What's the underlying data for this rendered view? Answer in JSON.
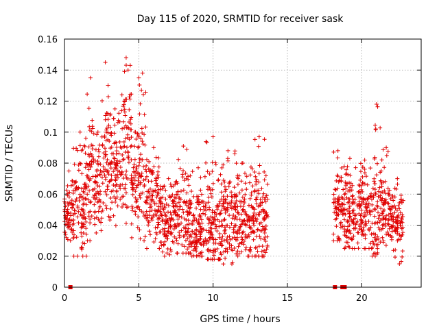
{
  "chart_data": {
    "type": "scatter",
    "title": "Day 115 of 2020, SRMTID for receiver sask",
    "xlabel": "GPS time / hours",
    "ylabel": "SRMTID / TECUs",
    "xlim": [
      0,
      24
    ],
    "ylim": [
      0,
      0.16
    ],
    "grid": true,
    "x_ticks": [
      0,
      5,
      10,
      15,
      20
    ],
    "x_tick_labels": [
      "0",
      "5",
      "10",
      "15",
      "20"
    ],
    "y_ticks": [
      0,
      0.02,
      0.04,
      0.06,
      0.08,
      0.1,
      0.12,
      0.14,
      0.16
    ],
    "y_tick_labels": [
      "0",
      "0.02",
      "0.04",
      "0.06",
      "0.08",
      "0.1",
      "0.12",
      "0.14",
      "0.16"
    ],
    "series": [
      {
        "name": "SRMTID",
        "marker": "plus",
        "color": "#e00000",
        "envelope_note": "dense cloud of plus markers; values described per time segment",
        "segments": [
          {
            "x_start": 0.0,
            "x_end": 0.6,
            "y_min": 0.03,
            "y_typ": 0.05,
            "y_max": 0.075
          },
          {
            "x_start": 0.6,
            "x_end": 1.5,
            "y_min": 0.02,
            "y_typ": 0.052,
            "y_max": 0.1
          },
          {
            "x_start": 1.5,
            "x_end": 2.0,
            "y_min": 0.03,
            "y_typ": 0.07,
            "y_max": 0.135
          },
          {
            "x_start": 2.0,
            "x_end": 2.5,
            "y_min": 0.035,
            "y_typ": 0.065,
            "y_max": 0.1
          },
          {
            "x_start": 2.5,
            "x_end": 3.0,
            "y_min": 0.04,
            "y_typ": 0.08,
            "y_max": 0.145
          },
          {
            "x_start": 3.0,
            "x_end": 3.8,
            "y_min": 0.03,
            "y_typ": 0.075,
            "y_max": 0.115
          },
          {
            "x_start": 3.8,
            "x_end": 4.5,
            "y_min": 0.03,
            "y_typ": 0.085,
            "y_max": 0.148
          },
          {
            "x_start": 4.5,
            "x_end": 5.0,
            "y_min": 0.03,
            "y_typ": 0.065,
            "y_max": 0.1
          },
          {
            "x_start": 5.0,
            "x_end": 5.5,
            "y_min": 0.03,
            "y_typ": 0.07,
            "y_max": 0.138
          },
          {
            "x_start": 5.5,
            "x_end": 6.5,
            "y_min": 0.025,
            "y_typ": 0.055,
            "y_max": 0.09
          },
          {
            "x_start": 6.5,
            "x_end": 7.5,
            "y_min": 0.02,
            "y_typ": 0.042,
            "y_max": 0.07
          },
          {
            "x_start": 7.5,
            "x_end": 8.5,
            "y_min": 0.022,
            "y_typ": 0.045,
            "y_max": 0.091
          },
          {
            "x_start": 8.5,
            "x_end": 9.5,
            "y_min": 0.02,
            "y_typ": 0.04,
            "y_max": 0.077
          },
          {
            "x_start": 9.5,
            "x_end": 10.5,
            "y_min": 0.018,
            "y_typ": 0.038,
            "y_max": 0.097
          },
          {
            "x_start": 10.5,
            "x_end": 11.5,
            "y_min": 0.015,
            "y_typ": 0.04,
            "y_max": 0.088
          },
          {
            "x_start": 11.5,
            "x_end": 12.5,
            "y_min": 0.02,
            "y_typ": 0.042,
            "y_max": 0.08
          },
          {
            "x_start": 12.5,
            "x_end": 13.7,
            "y_min": 0.02,
            "y_typ": 0.043,
            "y_max": 0.097
          },
          {
            "x_start": 18.1,
            "x_end": 18.7,
            "y_min": 0.03,
            "y_typ": 0.05,
            "y_max": 0.088
          },
          {
            "x_start": 18.7,
            "x_end": 19.7,
            "y_min": 0.025,
            "y_typ": 0.045,
            "y_max": 0.083
          },
          {
            "x_start": 19.7,
            "x_end": 20.7,
            "y_min": 0.025,
            "y_typ": 0.047,
            "y_max": 0.082
          },
          {
            "x_start": 20.7,
            "x_end": 21.3,
            "y_min": 0.02,
            "y_typ": 0.05,
            "y_max": 0.118
          },
          {
            "x_start": 21.3,
            "x_end": 22.0,
            "y_min": 0.025,
            "y_typ": 0.05,
            "y_max": 0.09
          },
          {
            "x_start": 22.0,
            "x_end": 22.8,
            "y_min": 0.015,
            "y_typ": 0.04,
            "y_max": 0.07
          }
        ]
      }
    ],
    "baseline_markers": {
      "name": "zero-value markers",
      "color": "#e00000",
      "x": [
        0.4,
        18.2,
        18.7,
        18.85
      ],
      "y": [
        0,
        0,
        0,
        0
      ]
    }
  }
}
